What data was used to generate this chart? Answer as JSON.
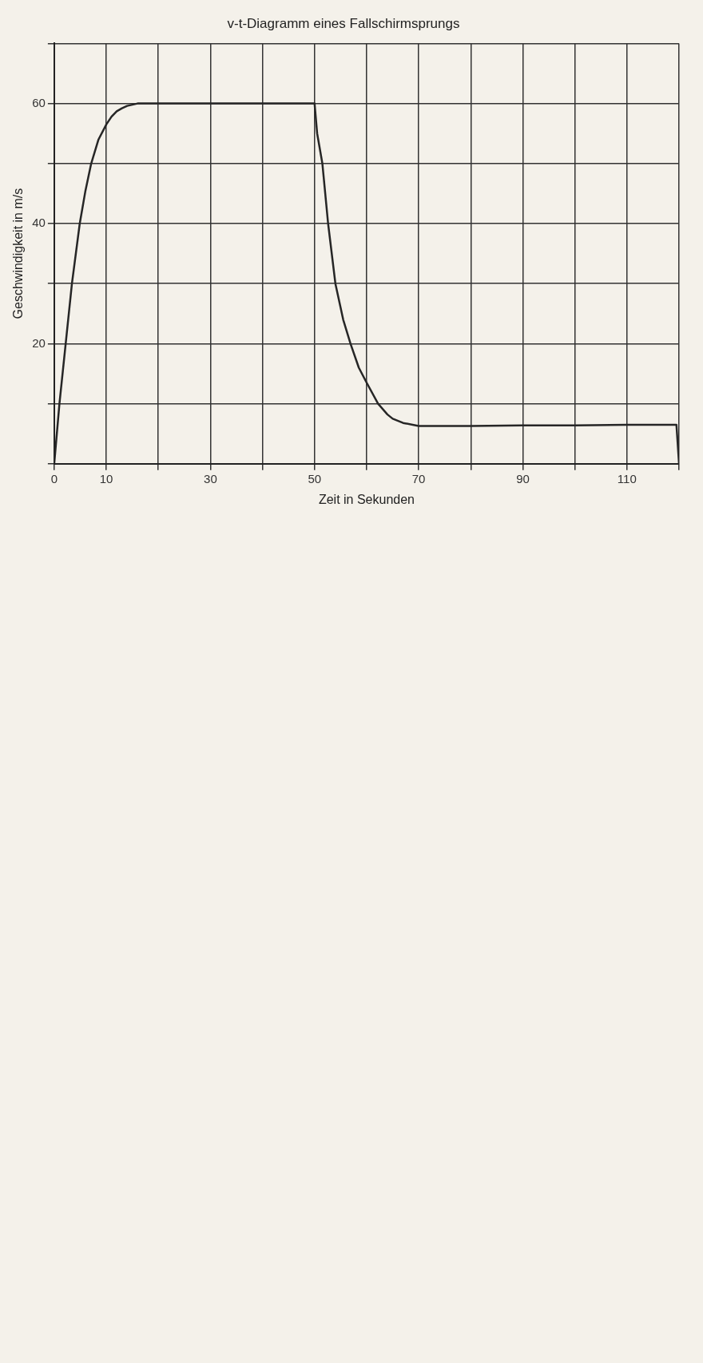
{
  "chart_data": {
    "type": "line",
    "title": "v-t-Diagramm eines Fallschirmsprungs",
    "xlabel": "Zeit in Sekunden",
    "ylabel": "Geschwindigkeit in m/s",
    "x": [
      0,
      1,
      2.2,
      3.4,
      4.9,
      6,
      7.1,
      8.5,
      10,
      11,
      12,
      13,
      14,
      16,
      20,
      30,
      40,
      48,
      50,
      50.5,
      51.5,
      52.6,
      54,
      55.5,
      56.9,
      58.5,
      60,
      62.2,
      64,
      65,
      67,
      70,
      80,
      90,
      100,
      110,
      115,
      119.5,
      120
    ],
    "series": [
      {
        "color": "#262626",
        "values": [
          0,
          10,
          20,
          30,
          40,
          45.5,
          50,
          54,
          56.5,
          57.8,
          58.7,
          59.2,
          59.6,
          60,
          60,
          60,
          60,
          60,
          60,
          55,
          50,
          40,
          30,
          24,
          20,
          16,
          13.5,
          10,
          8.2,
          7.5,
          6.8,
          6.3,
          6.3,
          6.4,
          6.4,
          6.5,
          6.5,
          6.5,
          0
        ]
      }
    ],
    "xlim": [
      0,
      120
    ],
    "xticks": [
      0,
      10,
      {
        "value": 20,
        "label": null
      },
      30,
      {
        "value": 40,
        "label": null
      },
      50,
      {
        "value": 60,
        "label": null
      },
      70,
      {
        "value": 80,
        "label": null
      },
      90,
      {
        "value": 100,
        "label": null
      },
      110,
      {
        "value": 120,
        "label": null
      }
    ],
    "ylim": [
      0,
      70
    ],
    "yticks": [
      {
        "value": 0,
        "label": null
      },
      {
        "value": 10,
        "label": null
      },
      20,
      {
        "value": 30,
        "label": null
      },
      40,
      {
        "value": 50,
        "label": null
      },
      60,
      {
        "value": 70,
        "label": null
      }
    ],
    "grid": true,
    "legend": false,
    "marker": "none",
    "line_style": "solid"
  }
}
